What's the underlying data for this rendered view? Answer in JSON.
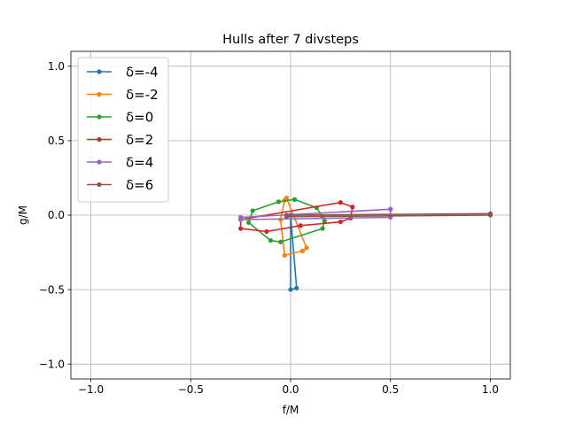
{
  "chart_data": {
    "type": "line",
    "title": "Hulls after 7 divsteps",
    "xlabel": "f/M",
    "ylabel": "g/M",
    "xlim": [
      -1.1,
      1.1
    ],
    "ylim": [
      -1.1,
      1.1
    ],
    "xticks": [
      -1.0,
      -0.5,
      0.0,
      0.5,
      1.0
    ],
    "yticks": [
      -1.0,
      -0.5,
      0.0,
      0.5,
      1.0
    ],
    "xtick_labels": [
      "−1.0",
      "−0.5",
      "0.0",
      "0.5",
      "1.0"
    ],
    "ytick_labels": [
      "−1.0",
      "−0.5",
      "0.0",
      "0.5",
      "1.0"
    ],
    "grid": true,
    "legend_position": "upper-left",
    "series": [
      {
        "name": "δ=-4",
        "color": "#1f77b4",
        "x": [
          0.0,
          0.03,
          0.0,
          0.0
        ],
        "y": [
          0.0,
          -0.49,
          -0.5,
          0.0
        ]
      },
      {
        "name": "δ=-2",
        "color": "#ff7f0e",
        "x": [
          -0.02,
          0.08,
          0.06,
          -0.03,
          -0.05,
          -0.03,
          -0.02
        ],
        "y": [
          0.115,
          -0.22,
          -0.24,
          -0.27,
          -0.03,
          0.1,
          0.115
        ]
      },
      {
        "name": "δ=0",
        "color": "#2ca02c",
        "x": [
          0.02,
          0.13,
          0.16,
          0.17,
          0.16,
          -0.05,
          -0.1,
          -0.21,
          -0.19,
          -0.06,
          0.02
        ],
        "y": [
          0.105,
          0.05,
          -0.01,
          -0.04,
          -0.09,
          -0.18,
          -0.17,
          -0.05,
          0.03,
          0.09,
          0.105
        ]
      },
      {
        "name": "δ=2",
        "color": "#d62728",
        "x": [
          0.25,
          0.31,
          0.3,
          0.25,
          0.05,
          -0.12,
          -0.25,
          -0.25,
          0.25
        ],
        "y": [
          0.085,
          0.055,
          -0.02,
          -0.045,
          -0.07,
          -0.11,
          -0.09,
          -0.03,
          0.085
        ]
      },
      {
        "name": "δ=4",
        "color": "#9467bd",
        "x": [
          0.5,
          0.5,
          -0.25,
          -0.25,
          0.5
        ],
        "y": [
          0.04,
          -0.015,
          -0.03,
          -0.015,
          0.04
        ]
      },
      {
        "name": "δ=6",
        "color": "#8c564b",
        "x": [
          1.0,
          1.0,
          -0.02,
          -0.02,
          1.0
        ],
        "y": [
          0.01,
          0.0,
          -0.01,
          0.0,
          0.01
        ]
      }
    ]
  }
}
